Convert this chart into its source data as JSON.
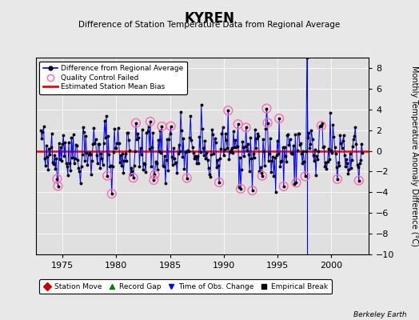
{
  "title": "KYREN",
  "subtitle": "Difference of Station Temperature Data from Regional Average",
  "ylabel": "Monthly Temperature Anomaly Difference (°C)",
  "xlim": [
    1972.5,
    2003.5
  ],
  "ylim": [
    -10,
    9
  ],
  "yticks": [
    -10,
    -8,
    -6,
    -4,
    -2,
    0,
    2,
    4,
    6,
    8
  ],
  "xticks": [
    1975,
    1980,
    1985,
    1990,
    1995,
    2000
  ],
  "bias_value": -0.05,
  "spike_x": 1997.75,
  "spike_value": 9.0,
  "fig_bg": "#e8e8e8",
  "plot_bg": "#e0e0e0",
  "line_color": "#0000ff",
  "bias_color": "#ff0000",
  "qc_color": "#ff69b4",
  "watermark": "Berkeley Earth",
  "start_year": 1973,
  "end_year": 2002,
  "seed": 42
}
